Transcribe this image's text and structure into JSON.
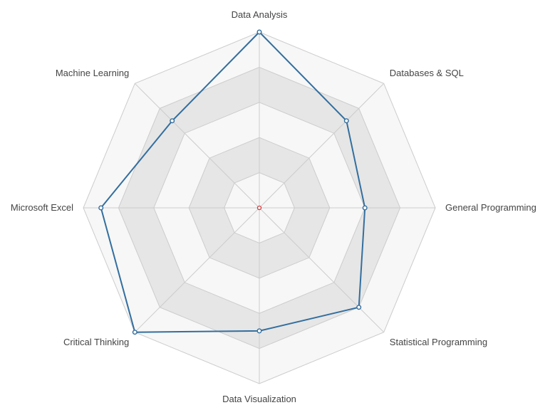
{
  "chart_data": {
    "type": "radar",
    "axes": [
      "Data Analysis",
      "Databases & SQL",
      "General Programming",
      "Statistical Programming",
      "Data Visualization",
      "Critical Thinking",
      "Microsoft Excel",
      "Machine Learning"
    ],
    "values": [
      10,
      7,
      6,
      8,
      7,
      10,
      9,
      7
    ],
    "range": [
      0,
      10
    ],
    "rings": 5,
    "grid": true,
    "band_color": "#e6e6e6",
    "web_fill": "#f7f7f7",
    "grid_line_color": "#cccccc",
    "series_color": "#336e9e",
    "center_color": "#cc3b3b"
  }
}
